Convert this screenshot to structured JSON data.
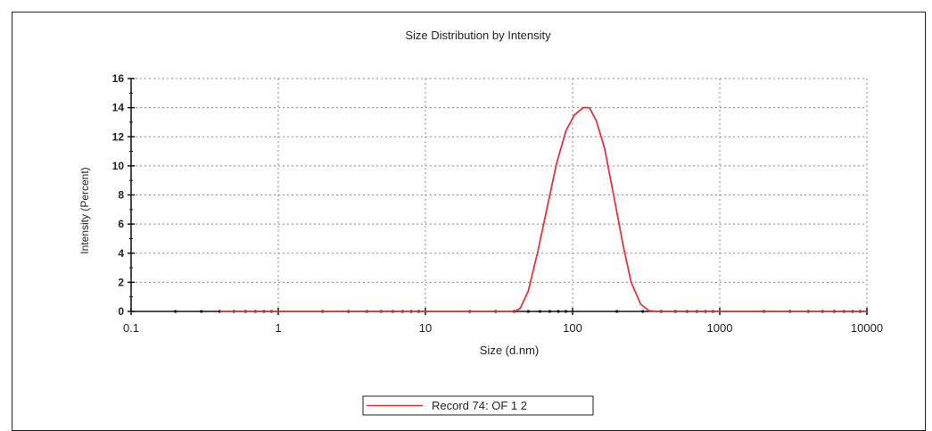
{
  "chart_data": {
    "type": "line",
    "title": "Size Distribution by Intensity",
    "xlabel": "Size (d.nm)",
    "ylabel": "Intensity (Percent)",
    "x_scale": "log",
    "xlim": [
      0.1,
      10000
    ],
    "ylim": [
      0,
      16
    ],
    "x_ticks": [
      "0.1",
      "1",
      "10",
      "100",
      "1000",
      "10000"
    ],
    "y_ticks": [
      "0",
      "2",
      "4",
      "6",
      "8",
      "10",
      "12",
      "14",
      "16"
    ],
    "grid": true,
    "legend_position": "bottom-center",
    "series": [
      {
        "name": "Record 74: OF 1 2",
        "color": "#e8323c",
        "x": [
          0.4,
          1,
          10,
          40,
          44,
          50,
          58,
          68,
          78,
          90,
          103,
          118,
          130,
          145,
          165,
          190,
          220,
          250,
          290,
          330,
          380,
          1000,
          10000
        ],
        "y": [
          0,
          0,
          0,
          0,
          0.2,
          1.4,
          4.1,
          7.4,
          10.2,
          12.4,
          13.5,
          14.0,
          14.0,
          13.1,
          11.2,
          8.0,
          4.6,
          2.0,
          0.5,
          0.05,
          0,
          0,
          0
        ]
      }
    ]
  }
}
